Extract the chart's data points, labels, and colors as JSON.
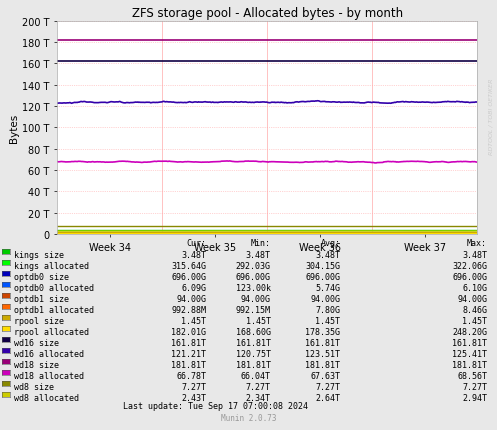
{
  "title": "ZFS storage pool - Allocated bytes - by month",
  "ylabel": "Bytes",
  "xlabel_ticks": [
    "Week 34",
    "Week 35",
    "Week 36",
    "Week 37"
  ],
  "ylim": [
    0,
    200
  ],
  "yticks": [
    0,
    20,
    40,
    60,
    80,
    100,
    120,
    140,
    160,
    180,
    200
  ],
  "ytick_labels": [
    "0",
    "20 T",
    "40 T",
    "60 T",
    "80 T",
    "100 T",
    "120 T",
    "140 T",
    "160 T",
    "180 T",
    "200 T"
  ],
  "watermark": "RDTOOL / TOBI OETIKER",
  "munin_version": "Munin 2.0.73",
  "last_update": "Last update: Tue Sep 17 07:00:08 2024",
  "fig_bg": "#e8e8e8",
  "plot_bg": "#ffffff",
  "series": [
    {
      "label": "kings size",
      "color": "#00cc00",
      "avg_T": 3.48,
      "noise": 0.0,
      "lw": 1.0
    },
    {
      "label": "kings allocated",
      "color": "#00ff00",
      "avg_T": 0.31,
      "noise": 0.01,
      "lw": 1.0
    },
    {
      "label": "optdb0 size",
      "color": "#0000bb",
      "avg_T": 0.68,
      "noise": 0.0,
      "lw": 1.0
    },
    {
      "label": "optdb0 allocated",
      "color": "#0055ff",
      "avg_T": 0.006,
      "noise": 0.002,
      "lw": 1.0
    },
    {
      "label": "optdb1 size",
      "color": "#cc4400",
      "avg_T": 0.092,
      "noise": 0.0,
      "lw": 1.0
    },
    {
      "label": "optdb1 allocated",
      "color": "#ff6600",
      "avg_T": 0.008,
      "noise": 0.001,
      "lw": 1.0
    },
    {
      "label": "rpool size",
      "color": "#ccaa00",
      "avg_T": 1.45,
      "noise": 0.0,
      "lw": 1.0
    },
    {
      "label": "rpool allocated",
      "color": "#ffdd00",
      "avg_T": 0.178,
      "noise": 0.03,
      "lw": 1.0
    },
    {
      "label": "wd16 size",
      "color": "#110044",
      "avg_T": 161.81,
      "noise": 0.0,
      "lw": 1.2
    },
    {
      "label": "wd16 allocated",
      "color": "#3300aa",
      "avg_T": 123.5,
      "noise": 1.8,
      "lw": 1.2
    },
    {
      "label": "wd18 size",
      "color": "#990077",
      "avg_T": 181.81,
      "noise": 0.0,
      "lw": 1.2
    },
    {
      "label": "wd18 allocated",
      "color": "#cc00bb",
      "avg_T": 67.6,
      "noise": 1.2,
      "lw": 1.2
    },
    {
      "label": "wd8 size",
      "color": "#888800",
      "avg_T": 7.27,
      "noise": 0.0,
      "lw": 1.0
    },
    {
      "label": "wd8 allocated",
      "color": "#cccc00",
      "avg_T": 2.64,
      "noise": 0.12,
      "lw": 1.0
    }
  ],
  "legend_data": [
    {
      "label": "kings size",
      "color": "#00cc00",
      "cur": "3.48T",
      "min": "3.48T",
      "avg": "3.48T",
      "max": "3.48T"
    },
    {
      "label": "kings allocated",
      "color": "#00ff00",
      "cur": "315.64G",
      "min": "292.03G",
      "avg": "304.15G",
      "max": "322.06G"
    },
    {
      "label": "optdb0 size",
      "color": "#0000bb",
      "cur": "696.00G",
      "min": "696.00G",
      "avg": "696.00G",
      "max": "696.00G"
    },
    {
      "label": "optdb0 allocated",
      "color": "#0055ff",
      "cur": "6.09G",
      "min": "123.00k",
      "avg": "5.74G",
      "max": "6.10G"
    },
    {
      "label": "optdb1 size",
      "color": "#cc4400",
      "cur": "94.00G",
      "min": "94.00G",
      "avg": "94.00G",
      "max": "94.00G"
    },
    {
      "label": "optdb1 allocated",
      "color": "#ff6600",
      "cur": "992.88M",
      "min": "992.15M",
      "avg": "7.80G",
      "max": "8.46G"
    },
    {
      "label": "rpool size",
      "color": "#ccaa00",
      "cur": "1.45T",
      "min": "1.45T",
      "avg": "1.45T",
      "max": "1.45T"
    },
    {
      "label": "rpool allocated",
      "color": "#ffdd00",
      "cur": "182.01G",
      "min": "168.60G",
      "avg": "178.35G",
      "max": "248.20G"
    },
    {
      "label": "wd16 size",
      "color": "#110044",
      "cur": "161.81T",
      "min": "161.81T",
      "avg": "161.81T",
      "max": "161.81T"
    },
    {
      "label": "wd16 allocated",
      "color": "#3300aa",
      "cur": "121.21T",
      "min": "120.75T",
      "avg": "123.51T",
      "max": "125.41T"
    },
    {
      "label": "wd18 size",
      "color": "#990077",
      "cur": "181.81T",
      "min": "181.81T",
      "avg": "181.81T",
      "max": "181.81T"
    },
    {
      "label": "wd18 allocated",
      "color": "#cc00bb",
      "cur": "66.78T",
      "min": "66.04T",
      "avg": "67.63T",
      "max": "68.56T"
    },
    {
      "label": "wd8 size",
      "color": "#888800",
      "cur": "7.27T",
      "min": "7.27T",
      "avg": "7.27T",
      "max": "7.27T"
    },
    {
      "label": "wd8 allocated",
      "color": "#cccc00",
      "cur": "2.43T",
      "min": "2.34T",
      "avg": "2.64T",
      "max": "2.94T"
    }
  ]
}
